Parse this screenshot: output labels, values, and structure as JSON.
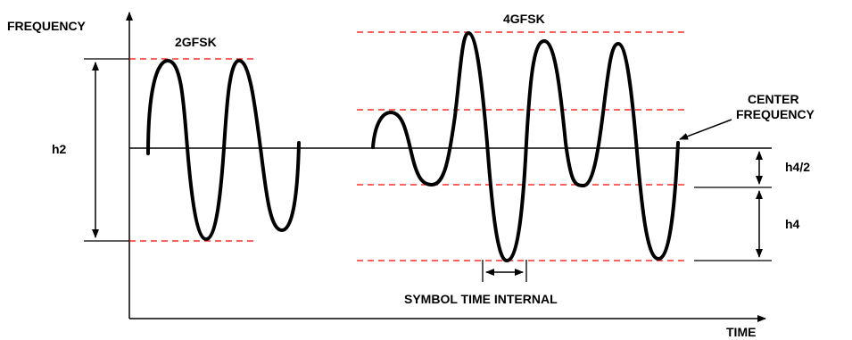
{
  "labels": {
    "frequency": "FREQUENCY",
    "time": "TIME",
    "two_gfsk": "2GFSK",
    "four_gfsk": "4GFSK",
    "center_frequency_line1": "CENTER",
    "center_frequency_line2": "FREQUENCY",
    "h2": "h2",
    "h4_half": "h4/2",
    "h4": "h4",
    "symbol_time": "SYMBOL TIME INTERNAL"
  },
  "colors": {
    "waveform": "#000000",
    "axes": "#000000",
    "deviation_dash": "#ff0000"
  }
}
